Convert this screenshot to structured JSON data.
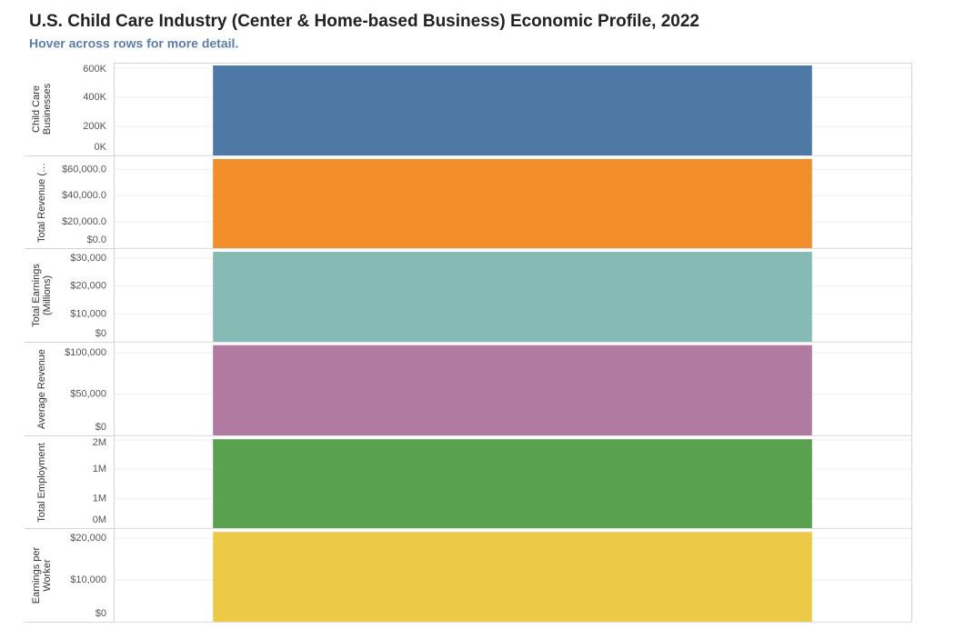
{
  "title": "U.S. Child Care Industry (Center & Home-based Business) Economic Profile, 2022",
  "subtitle": "Hover across rows for more detail.",
  "chart_data": [
    {
      "type": "bar",
      "y_label": "Child Care Businesses",
      "categories": [
        null
      ],
      "values": [
        619000
      ],
      "color": "#4e79a7",
      "ylim": [
        0,
        638000
      ],
      "yticks": [
        {
          "value": 0,
          "label": "0K"
        },
        {
          "value": 200000,
          "label": "200K"
        },
        {
          "value": 400000,
          "label": "400K"
        },
        {
          "value": 600000,
          "label": "600K"
        }
      ],
      "grid": true
    },
    {
      "type": "bar",
      "y_label": "Total Revenue (…",
      "categories": [
        null
      ],
      "values": [
        68000
      ],
      "color": "#f28e2b",
      "ylim": [
        0,
        70000
      ],
      "yticks": [
        {
          "value": 0,
          "label": "$0.0"
        },
        {
          "value": 20000,
          "label": "$20,000.0"
        },
        {
          "value": 40000,
          "label": "$40,000.0"
        },
        {
          "value": 60000,
          "label": "$60,000.0"
        }
      ],
      "grid": true
    },
    {
      "type": "bar",
      "y_label": "Total Earnings (Millions)",
      "categories": [
        null
      ],
      "values": [
        32300
      ],
      "color": "#86bab4",
      "ylim": [
        0,
        33300
      ],
      "yticks": [
        {
          "value": 0,
          "label": "$0"
        },
        {
          "value": 10000,
          "label": "$10,000"
        },
        {
          "value": 20000,
          "label": "$20,000"
        },
        {
          "value": 30000,
          "label": "$30,000"
        }
      ],
      "grid": true
    },
    {
      "type": "bar",
      "y_label": "Average Revenue",
      "categories": [
        null
      ],
      "values": [
        109000
      ],
      "color": "#b07aa1",
      "ylim": [
        0,
        112000
      ],
      "yticks": [
        {
          "value": 0,
          "label": "$0"
        },
        {
          "value": 50000,
          "label": "$50,000"
        },
        {
          "value": 100000,
          "label": "$100,000"
        }
      ],
      "grid": true
    },
    {
      "type": "bar",
      "y_label": "Total Employment",
      "categories": [
        null
      ],
      "values": [
        1510000
      ],
      "color": "#59a14f",
      "ylim": [
        0,
        1560000
      ],
      "yticks": [
        {
          "value": 0,
          "label": "0M"
        },
        {
          "value": 500000,
          "label": "1M"
        },
        {
          "value": 1000000,
          "label": "1M"
        },
        {
          "value": 1500000,
          "label": "2M"
        }
      ],
      "grid": true
    },
    {
      "type": "bar",
      "y_label": "Earnings per Worker",
      "categories": [
        null
      ],
      "values": [
        21500
      ],
      "color": "#edc948",
      "ylim": [
        0,
        22200
      ],
      "yticks": [
        {
          "value": 0,
          "label": "$0"
        },
        {
          "value": 10000,
          "label": "$10,000"
        },
        {
          "value": 20000,
          "label": "$20,000"
        }
      ],
      "grid": true
    }
  ]
}
